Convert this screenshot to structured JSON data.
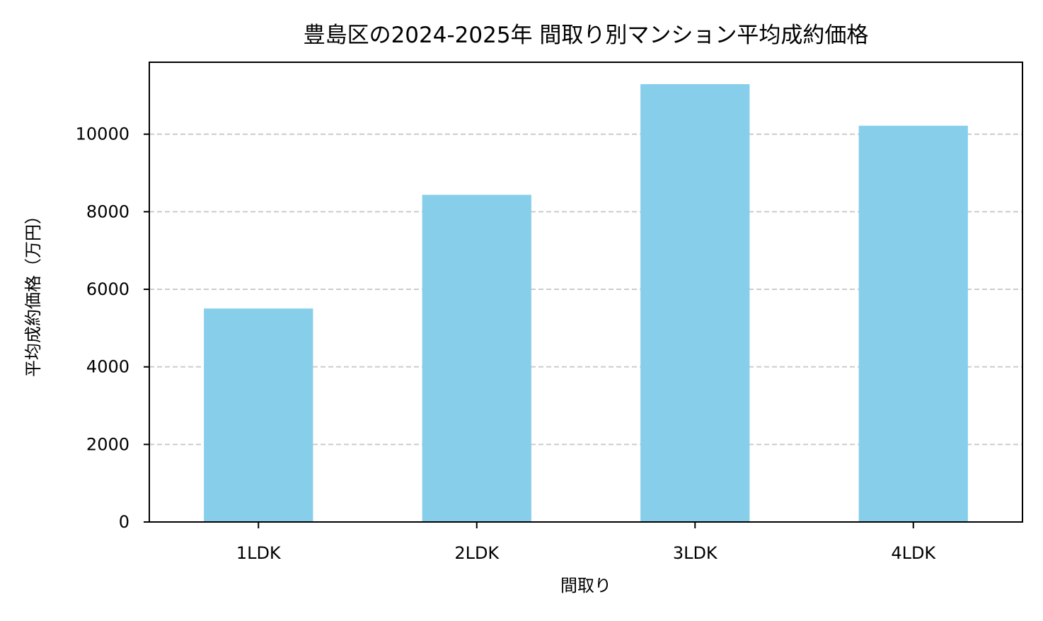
{
  "chart_data": {
    "type": "bar",
    "title": "豊島区の2024-2025年 間取り別マンション平均成約価格",
    "xlabel": "間取り",
    "ylabel": "平均成約価格（万円）",
    "categories": [
      "1LDK",
      "2LDK",
      "3LDK",
      "4LDK"
    ],
    "values": [
      5505,
      8436,
      11290,
      10218
    ],
    "ylim": [
      0,
      11855
    ],
    "yticks": [
      0,
      2000,
      4000,
      6000,
      8000,
      10000
    ],
    "grid": "y-dashed",
    "bar_color": "#87CEEB",
    "grid_color": "#cccccc"
  }
}
